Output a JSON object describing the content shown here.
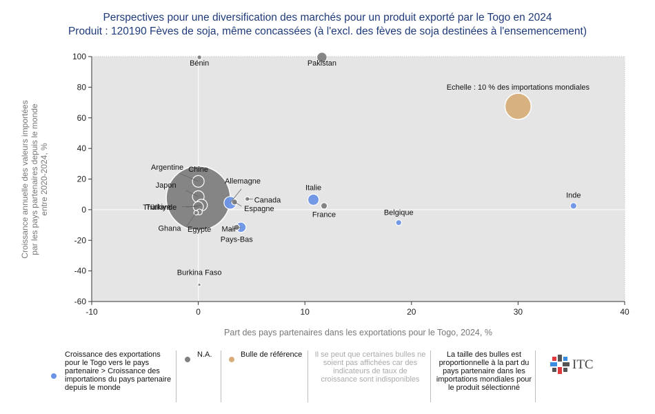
{
  "title": "Perspectives pour une diversification des marchés pour un produit exporté par le Togo en 2024",
  "subtitle": "Produit : 120190 Fèves de soja, même concassées (à l'excl. des fèves de soja destinées à l'ensemencement)",
  "chart_data": {
    "type": "scatter",
    "title": "Perspectives pour une diversification des marchés pour un produit exporté par le Togo en 2024",
    "subtitle": "Produit : 120190 Fèves de soja, même concassées (à l'excl. des fèves de soja destinées à l'ensemencement)",
    "xlabel": "Part des pays partenaires dans les exportations pour le Togo, 2024, %",
    "ylabel_lines": [
      "Croissance annuelle des valeurs importées",
      "par les pays partenaires depuis le monde",
      "entre 2020-2024, %"
    ],
    "xlim": [
      -10,
      40
    ],
    "ylim": [
      -60,
      100
    ],
    "xticks": [
      "-10",
      "0",
      "10",
      "20",
      "30",
      "40"
    ],
    "yticks": [
      "-60",
      "-40",
      "-20",
      "0",
      "20",
      "40",
      "60",
      "80",
      "100"
    ],
    "grid": false,
    "colors": {
      "blue": "#6b93e6",
      "grey": "#808080",
      "beige": "#d7ae7b",
      "plot_bg": "#e5e5e5"
    },
    "points": [
      {
        "name": "Bénin",
        "x": 0.1,
        "y": 99.5,
        "size": 0.3,
        "category": "na"
      },
      {
        "name": "Pakistan",
        "x": 11.6,
        "y": 99.5,
        "size": 1.5,
        "category": "na"
      },
      {
        "name": "Chine",
        "x": 0.0,
        "y": 7.5,
        "size": 60,
        "category": "na"
      },
      {
        "name": "Argentine",
        "x": 0.0,
        "y": 18.5,
        "size": 2.0,
        "category": "na"
      },
      {
        "name": "Japon",
        "x": 0.0,
        "y": 8.5,
        "size": 2.0,
        "category": "na"
      },
      {
        "name": "Türkiye",
        "x": 0.0,
        "y": 2.0,
        "size": 1.5,
        "category": "na"
      },
      {
        "name": "Thaïlande",
        "x": 0.3,
        "y": 3.0,
        "size": 2.0,
        "category": "na"
      },
      {
        "name": "Allemagne",
        "x": 3.0,
        "y": 4.5,
        "size": 2.3,
        "category": "increase"
      },
      {
        "name": "Espagne",
        "x": 3.4,
        "y": 5.0,
        "size": 0.5,
        "category": "na"
      },
      {
        "name": "Canada",
        "x": 4.6,
        "y": 7.0,
        "size": 0.3,
        "category": "na"
      },
      {
        "name": "Egypte",
        "x": 0.1,
        "y": -1.5,
        "size": 0.5,
        "category": "na"
      },
      {
        "name": "Ghana",
        "x": -0.2,
        "y": -2.0,
        "size": 0.3,
        "category": "na"
      },
      {
        "name": "Mali",
        "x": 4.0,
        "y": -11.5,
        "size": 1.5,
        "category": "increase"
      },
      {
        "name": "Pays-Bas",
        "x": 3.6,
        "y": -11.5,
        "size": 0.5,
        "category": "na"
      },
      {
        "name": "Burkina Faso",
        "x": 0.1,
        "y": -49.0,
        "size": 0.1,
        "category": "na"
      },
      {
        "name": "Italie",
        "x": 10.8,
        "y": 6.5,
        "size": 1.8,
        "category": "increase"
      },
      {
        "name": "France",
        "x": 11.8,
        "y": 2.5,
        "size": 0.6,
        "category": "na"
      },
      {
        "name": "Belgique",
        "x": 18.8,
        "y": -8.5,
        "size": 0.5,
        "category": "increase"
      },
      {
        "name": "Inde",
        "x": 35.2,
        "y": 2.5,
        "size": 0.6,
        "category": "increase"
      },
      {
        "name": "Echelle : 10 % des importations mondiales",
        "x": 30.0,
        "y": 67.5,
        "size": 10,
        "category": "reference"
      }
    ]
  },
  "legend": {
    "increase_label": "Croissance des exportations pour le Togo vers le pays partenaire > Croissance des importations du pays partenaire depuis le monde",
    "na_label": "N.A.",
    "reference_label": "Bulle de référence",
    "note": "Il se peut que certaines bulles ne soient pas affichées car des indicateurs de taux de croissance sont indisponibles",
    "size_note": "La taille des bulles est proportionnelle à la part du pays partenaire dans les importations mondiales pour le produit sélectionné",
    "logo_text": "ITC"
  }
}
